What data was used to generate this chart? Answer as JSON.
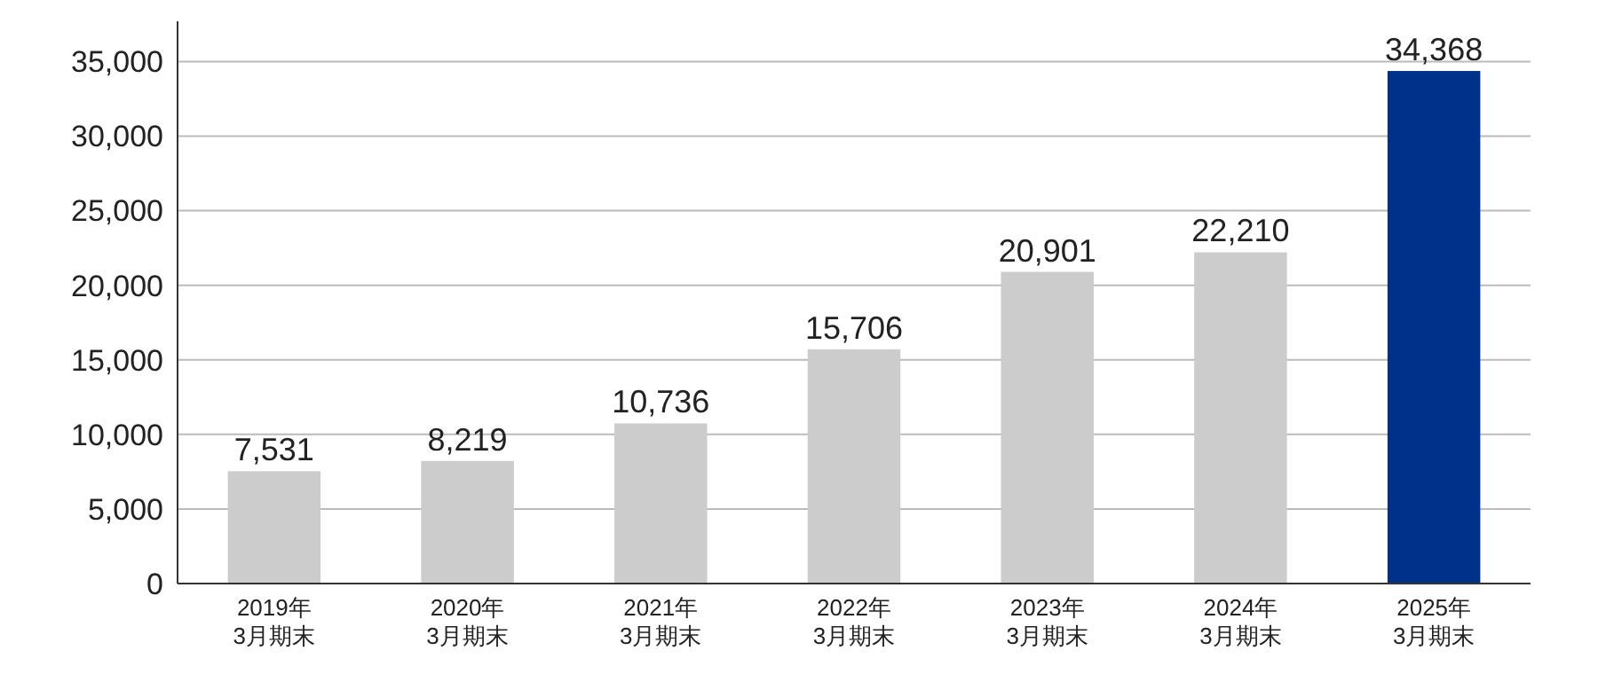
{
  "chart_data": {
    "type": "bar",
    "categories": [
      "2019年\n3月期末",
      "2020年\n3月期末",
      "2021年\n3月期末",
      "2022年\n3月期末",
      "2023年\n3月期末",
      "2024年\n3月期末",
      "2025年\n3月期末"
    ],
    "values": [
      7531,
      8219,
      10736,
      15706,
      20901,
      22210,
      34368
    ],
    "colors": [
      "#cccccc",
      "#cccccc",
      "#cccccc",
      "#cccccc",
      "#cccccc",
      "#cccccc",
      "#00318a"
    ],
    "value_labels": [
      "7,531",
      "8,219",
      "10,736",
      "15,706",
      "20,901",
      "22,210",
      "34,368"
    ],
    "ylim": [
      0,
      37700
    ],
    "yticks": [
      0,
      {
        "value": 5000,
        "label": "5,000"
      },
      {
        "value": 10000,
        "label": "10,000"
      },
      {
        "value": 15000,
        "label": "15,000"
      },
      {
        "value": 20000,
        "label": "20,000"
      },
      {
        "value": 25000,
        "label": "25,000"
      },
      {
        "value": 30000,
        "label": "30,000"
      },
      {
        "value": 35000,
        "label": "35,000"
      }
    ],
    "grid": "y"
  }
}
